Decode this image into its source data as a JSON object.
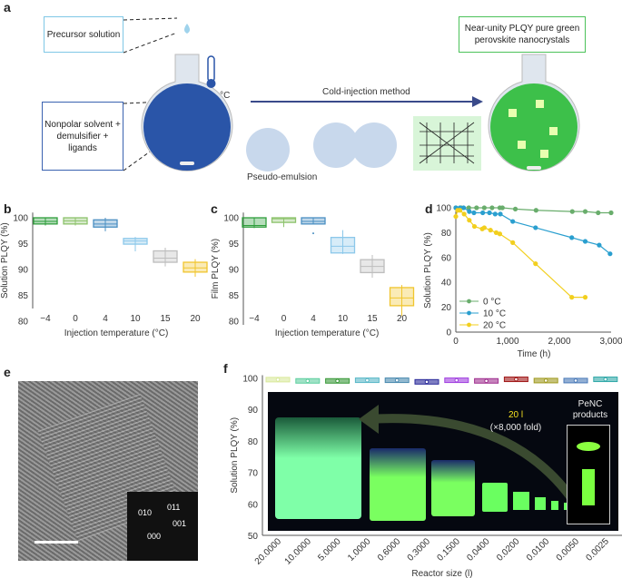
{
  "panel_labels": [
    "a",
    "b",
    "c",
    "d",
    "e",
    "f"
  ],
  "schematic": {
    "precursor": "Precursor solution",
    "nonpolar": "Nonpolar solvent + demulsifier + ligands",
    "temperature": "<4 °C",
    "method": "Cold-injection method",
    "pseudo": "Pseudo-emulsion",
    "product": "Near-unity PLQY pure green perovskite nanocrystals",
    "colors": {
      "precursor_box": "#7fc7e6",
      "nonpolar_box": "#3a62b0",
      "product_box": "#4cc25a",
      "flask_blue": "#2a55a8",
      "flask_green": "#3dc04a"
    }
  },
  "tem": {
    "fft_labels": [
      "010",
      "011",
      "001",
      "000"
    ]
  },
  "photo": {
    "volume": "20 l",
    "fold": "(×8,000 fold)",
    "products": "PeNC products"
  },
  "chart_data": [
    {
      "panel": "b",
      "type": "box",
      "xlabel": "Injection temperature (°C)",
      "ylabel": "Solution PLQY (%)",
      "ylim": [
        80,
        101
      ],
      "yticks": [
        80,
        85,
        90,
        95,
        100
      ],
      "categories": [
        "−4",
        "0",
        "4",
        "10",
        "15",
        "20"
      ],
      "colors": [
        "#2f9e3c",
        "#8dc26c",
        "#4a8fc2",
        "#8cc8ea",
        "#bdbdbd",
        "#f0c52e"
      ],
      "boxes": [
        {
          "min": 98.5,
          "q1": 98.8,
          "med": 99.3,
          "q3": 100,
          "max": 100
        },
        {
          "min": 98.5,
          "q1": 98.8,
          "med": 99.4,
          "q3": 100,
          "max": 100
        },
        {
          "min": 97.4,
          "q1": 98.2,
          "med": 98.8,
          "q3": 99.6,
          "max": 100
        },
        {
          "min": 93.5,
          "q1": 94.9,
          "med": 95.5,
          "q3": 96,
          "max": 96.3
        },
        {
          "min": 90.6,
          "q1": 91.4,
          "med": 92.2,
          "q3": 93.6,
          "max": 94.2
        },
        {
          "min": 88.6,
          "q1": 89.5,
          "med": 90.3,
          "q3": 91.4,
          "max": 92
        }
      ]
    },
    {
      "panel": "c",
      "type": "box",
      "xlabel": "Injection temperature (°C)",
      "ylabel": "Film PLQY (%)",
      "ylim": [
        79,
        101
      ],
      "yticks": [
        80,
        85,
        90,
        95,
        100
      ],
      "categories": [
        "−4",
        "0",
        "4",
        "10",
        "15",
        "20"
      ],
      "colors": [
        "#2f9e3c",
        "#8dc26c",
        "#4a8fc2",
        "#8cc8ea",
        "#bdbdbd",
        "#f0c52e"
      ],
      "boxes": [
        {
          "min": 98,
          "q1": 98.2,
          "med": 98.5,
          "q3": 100,
          "max": 100
        },
        {
          "min": 98.2,
          "q1": 99.1,
          "med": 99.8,
          "q3": 100,
          "max": 100
        },
        {
          "min": 98.8,
          "q1": 98.8,
          "med": 99.3,
          "q3": 100,
          "max": 100,
          "outlier": 97
        },
        {
          "min": 93,
          "q1": 93.2,
          "med": 94.5,
          "q3": 96.2,
          "max": 97.6
        },
        {
          "min": 88.4,
          "q1": 89.4,
          "med": 90.6,
          "q3": 91.9,
          "max": 92.8
        },
        {
          "min": 81,
          "q1": 83,
          "med": 84.5,
          "q3": 86.5,
          "max": 87
        }
      ]
    },
    {
      "panel": "d",
      "type": "line",
      "xlabel": "Time (h)",
      "ylabel": "Solution PLQY (%)",
      "xlim": [
        0,
        3000
      ],
      "ylim": [
        0,
        100
      ],
      "xticks": [
        "0",
        "1,000",
        "2,000",
        "3,000"
      ],
      "yticks": [
        0,
        20,
        40,
        60,
        80,
        100
      ],
      "legend": "bottom-left",
      "series": [
        {
          "name": "0 °C",
          "color": "#69ad6c",
          "x": [
            0,
            100,
            250,
            400,
            550,
            700,
            850,
            900,
            1150,
            1550,
            2250,
            2500,
            2750,
            3000
          ],
          "y": [
            100,
            100,
            100,
            100,
            100,
            100,
            100,
            100,
            99,
            98,
            97,
            97,
            96,
            96
          ]
        },
        {
          "name": "10 °C",
          "color": "#2a9fcf",
          "x": [
            0,
            80,
            150,
            260,
            350,
            520,
            650,
            760,
            860,
            1100,
            1540,
            2240,
            2500,
            2770,
            2980
          ],
          "y": [
            100,
            100,
            100,
            97,
            96,
            96,
            96,
            95,
            95,
            89,
            84,
            76,
            73,
            70,
            63
          ]
        },
        {
          "name": "20 °C",
          "color": "#f2cf1e",
          "x": [
            0,
            35,
            80,
            160,
            260,
            360,
            510,
            550,
            670,
            780,
            850,
            1100,
            1540,
            2240,
            2500
          ],
          "y": [
            93,
            98,
            98,
            95,
            90,
            85,
            83,
            84,
            82,
            80,
            79,
            72,
            55,
            28,
            28
          ]
        }
      ]
    },
    {
      "panel": "f",
      "type": "box",
      "xlabel": "Reactor size (l)",
      "ylabel": "Solution PLQY (%)",
      "ylim": [
        50,
        101
      ],
      "yticks": [
        50,
        60,
        70,
        80,
        90,
        100
      ],
      "categories": [
        "20.0000",
        "10.0000",
        "5.0000",
        "1.0000",
        "0.6000",
        "0.3000",
        "0.1500",
        "0.0400",
        "0.0200",
        "0.0100",
        "0.0050",
        "0.0025"
      ],
      "colors": [
        "#d9e99c",
        "#5fcfa0",
        "#3a9a3a",
        "#5ab8c8",
        "#4a8ab0",
        "#2a2a9a",
        "#a040e0",
        "#a03090",
        "#a01818",
        "#a09a20",
        "#4a7ab8",
        "#30a8a8"
      ],
      "values": [
        99.6,
        99.2,
        99.2,
        99.4,
        99.4,
        98.9,
        99.4,
        99.2,
        99.7,
        99.3,
        99.3,
        99.7
      ]
    }
  ]
}
